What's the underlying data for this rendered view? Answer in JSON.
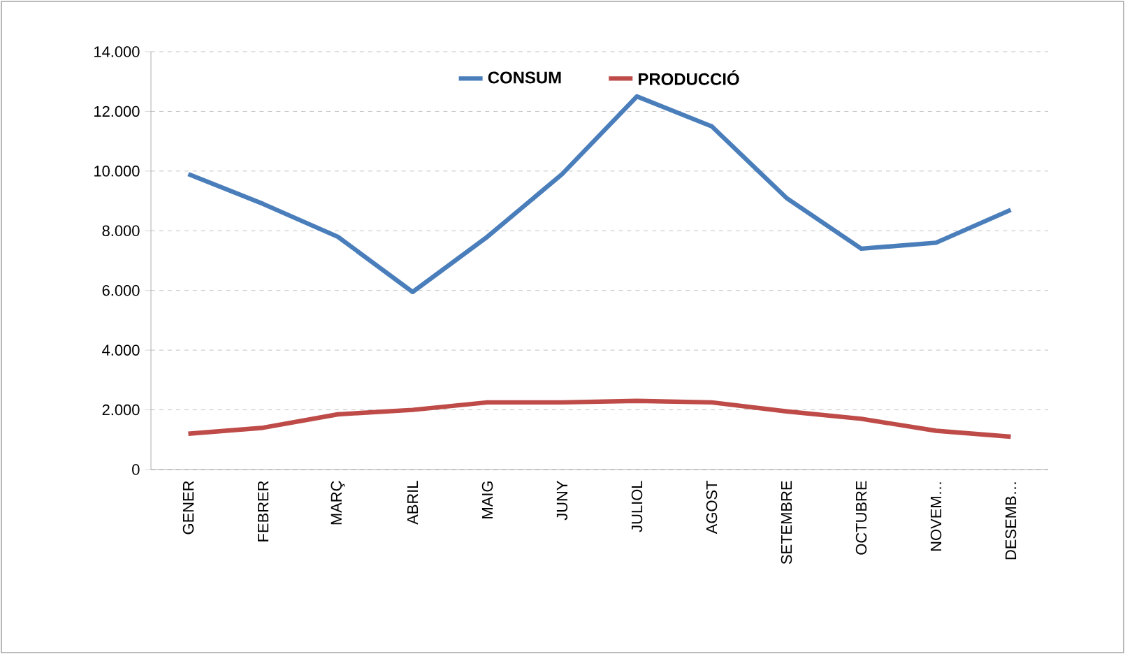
{
  "chart_data": {
    "type": "line",
    "categories": [
      "GENER",
      "FEBRER",
      "MARÇ",
      "ABRIL",
      "MAIG",
      "JUNY",
      "JULIOL",
      "AGOST",
      "SETEMBRE",
      "OCTUBRE",
      "NOVEM…",
      "DESEMB…"
    ],
    "series": [
      {
        "name": "CONSUM",
        "color": "#4a7ebb",
        "values": [
          9900,
          8900,
          7800,
          5950,
          7800,
          9900,
          12500,
          11500,
          9100,
          7400,
          7600,
          8700
        ]
      },
      {
        "name": "PRODUCCIÓ",
        "color": "#be4b48",
        "values": [
          1200,
          1400,
          1850,
          2000,
          2250,
          2250,
          2300,
          2250,
          1950,
          1700,
          1300,
          1100
        ]
      }
    ],
    "ylim": [
      0,
      14000
    ],
    "yticks": [
      0,
      {
        "value": 2000,
        "label": "2.000"
      },
      {
        "value": 4000,
        "label": "4.000"
      },
      {
        "value": 6000,
        "label": "6.000"
      },
      {
        "value": 8000,
        "label": "8.000"
      },
      {
        "value": 10000,
        "label": "10.000"
      },
      {
        "value": 12000,
        "label": "12.000"
      },
      {
        "value": 14000,
        "label": "14.000"
      }
    ],
    "grid": "y",
    "legend": "top",
    "marker": "none",
    "line_style": "solid"
  }
}
